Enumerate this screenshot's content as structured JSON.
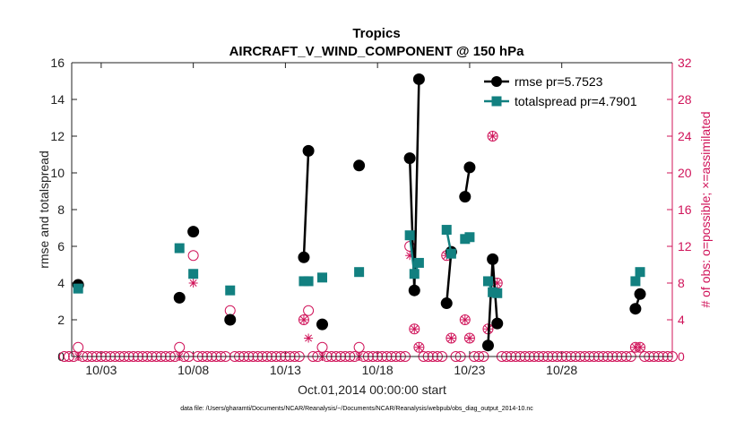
{
  "chart_data": {
    "type": "line",
    "title": "Tropics",
    "subtitle": "AIRCRAFT_V_WIND_COMPONENT @ 150 hPa",
    "xlabel": "Oct.01,2014 00:00:00 start",
    "ylabel": "rmse and totalspread",
    "y2label": "# of obs: o=possible; ×=assimilated",
    "footnote": "data file: /Users/gharamti/Documents/NCAR/Reanalysis/~/Documents/NCAR/Reanalysis/webpub/obs_diag_output_2014-10.nc",
    "xlim": [
      1.4,
      34.0
    ],
    "ylim": [
      0,
      16
    ],
    "y2lim": [
      0,
      32
    ],
    "xticks": [
      3,
      8,
      13,
      18,
      23,
      28
    ],
    "xtick_labels": [
      "10/03",
      "10/08",
      "10/13",
      "10/18",
      "10/23",
      "10/28"
    ],
    "yticks": [
      0,
      2,
      4,
      6,
      8,
      10,
      12,
      14,
      16
    ],
    "y2ticks": [
      0,
      4,
      8,
      12,
      16,
      20,
      24,
      28,
      32
    ],
    "colors": {
      "rmse": "#000000",
      "spread": "#128080",
      "obs": "#d0145a"
    },
    "legend": [
      {
        "name": "rmse pr=5.7523"
      },
      {
        "name": "totalspread pr=4.7901"
      }
    ],
    "series": [
      {
        "name": "rmse pr=5.7523",
        "segments": [
          [
            [
              1.75,
              3.9
            ]
          ],
          [
            [
              7.25,
              3.2
            ]
          ],
          [
            [
              8.0,
              6.8
            ]
          ],
          [
            [
              10.0,
              2.0
            ]
          ],
          [
            [
              14.0,
              5.4
            ],
            [
              14.25,
              11.2
            ]
          ],
          [
            [
              15.0,
              1.75
            ]
          ],
          [
            [
              17.0,
              10.4
            ]
          ],
          [
            [
              19.75,
              10.8
            ],
            [
              20.0,
              3.6
            ],
            [
              20.25,
              15.1
            ]
          ],
          [
            [
              21.75,
              2.9
            ],
            [
              22.0,
              5.7
            ]
          ],
          [
            [
              22.75,
              8.7
            ],
            [
              23.0,
              10.3
            ]
          ],
          [
            [
              24.0,
              0.6
            ],
            [
              24.25,
              5.3
            ],
            [
              24.5,
              1.8
            ]
          ],
          [
            [
              32.0,
              2.6
            ],
            [
              32.25,
              3.4
            ]
          ]
        ]
      },
      {
        "name": "totalspread pr=4.7901",
        "segments": [
          [
            [
              1.75,
              3.7
            ]
          ],
          [
            [
              7.25,
              5.9
            ]
          ],
          [
            [
              8.0,
              4.5
            ]
          ],
          [
            [
              10.0,
              3.6
            ]
          ],
          [
            [
              14.0,
              4.1
            ],
            [
              14.25,
              4.1
            ]
          ],
          [
            [
              15.0,
              4.3
            ]
          ],
          [
            [
              17.0,
              4.6
            ]
          ],
          [
            [
              19.75,
              6.6
            ],
            [
              20.0,
              4.5
            ],
            [
              20.25,
              5.1
            ]
          ],
          [
            [
              21.75,
              6.9
            ],
            [
              22.0,
              5.6
            ]
          ],
          [
            [
              22.75,
              6.4
            ],
            [
              23.0,
              6.5
            ]
          ],
          [
            [
              24.0,
              4.1
            ],
            [
              24.25,
              3.5
            ],
            [
              24.5,
              3.45
            ]
          ],
          [
            [
              32.0,
              4.1
            ],
            [
              32.25,
              4.6
            ]
          ]
        ]
      }
    ],
    "obs_possible": {
      "x_start": 1.0,
      "x_end": 34.0,
      "step": 0.25,
      "baseline": 0,
      "values": [
        [
          1.75,
          1
        ],
        [
          7.25,
          1
        ],
        [
          8.0,
          11
        ],
        [
          10.0,
          5
        ],
        [
          14.0,
          4
        ],
        [
          14.25,
          5
        ],
        [
          15.0,
          1
        ],
        [
          17.0,
          1
        ],
        [
          19.75,
          12
        ],
        [
          20.0,
          3
        ],
        [
          20.25,
          1
        ],
        [
          21.75,
          11
        ],
        [
          22.0,
          2
        ],
        [
          22.75,
          4
        ],
        [
          23.0,
          2
        ],
        [
          24.0,
          3
        ],
        [
          24.25,
          24
        ],
        [
          24.5,
          8
        ],
        [
          32.0,
          1
        ],
        [
          32.25,
          1
        ]
      ]
    },
    "obs_assimilated": {
      "values": [
        [
          1.75,
          0
        ],
        [
          7.25,
          0
        ],
        [
          8.0,
          8
        ],
        [
          10.0,
          4
        ],
        [
          14.0,
          4
        ],
        [
          14.25,
          2
        ],
        [
          15.0,
          0
        ],
        [
          17.0,
          0
        ],
        [
          19.75,
          11
        ],
        [
          20.0,
          3
        ],
        [
          20.25,
          1
        ],
        [
          21.75,
          11
        ],
        [
          22.0,
          2
        ],
        [
          22.75,
          4
        ],
        [
          23.0,
          2
        ],
        [
          24.0,
          3
        ],
        [
          24.25,
          24
        ],
        [
          24.5,
          8
        ],
        [
          32.0,
          1
        ],
        [
          32.25,
          1
        ]
      ]
    }
  }
}
